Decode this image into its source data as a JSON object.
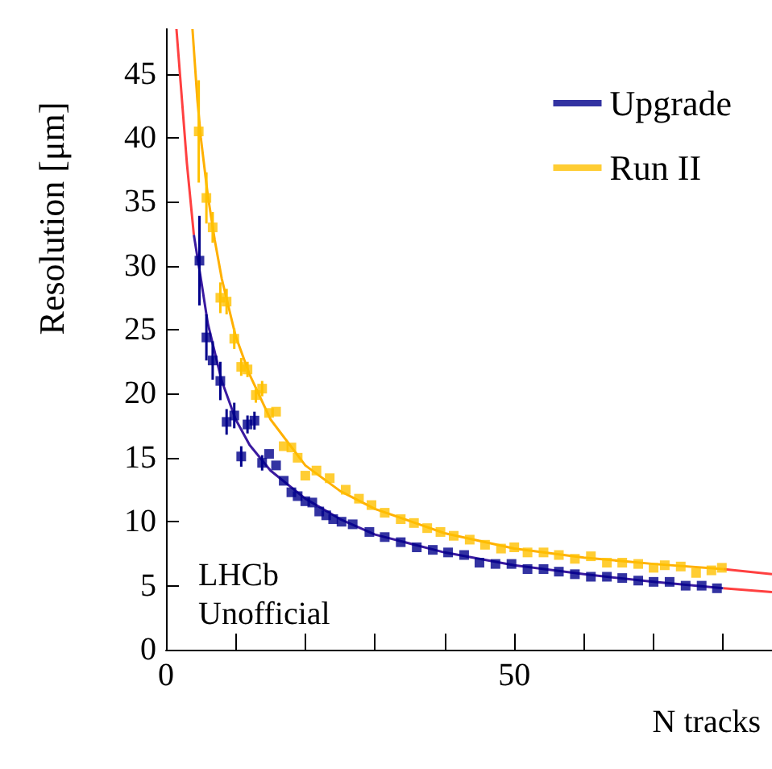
{
  "chart_data": {
    "type": "scatter",
    "xlabel": "N tracks",
    "ylabel": "Resolution [μm]",
    "annotations": [
      "LHCb\nUnofficial"
    ],
    "xlim": [
      0,
      87
    ],
    "ylim": [
      0,
      48.5
    ],
    "xticks": [
      0,
      {
        "value": 10,
        "label": null
      },
      {
        "value": 20,
        "label": null
      },
      {
        "value": 30,
        "label": null
      },
      {
        "value": 40,
        "label": null
      },
      50,
      {
        "value": 60,
        "label": null
      },
      {
        "value": 70,
        "label": null
      },
      {
        "value": 80,
        "label": null
      }
    ],
    "yticks": [
      0,
      5,
      10,
      15,
      20,
      25,
      30,
      35,
      40,
      45
    ],
    "grid": false,
    "legend": "top right",
    "marker": "square",
    "series": [
      {
        "type": "line",
        "marker": "none",
        "color": "#ff4040",
        "x": [
          1.5,
          2,
          3,
          4,
          4.01,
          79.9,
          80,
          87
        ],
        "values": [
          48.5,
          45,
          38,
          32.4,
          null,
          null,
          4.8,
          4.5
        ]
      },
      {
        "type": "line",
        "marker": "none",
        "color": "#ff4040",
        "x": [
          80,
          87
        ],
        "values": [
          6.3,
          5.9
        ]
      },
      {
        "type": "line",
        "marker": "none",
        "color": "#3a1aa0",
        "x": [
          4,
          5,
          6,
          8,
          10,
          12,
          15,
          20,
          25,
          30,
          40,
          50,
          60,
          70,
          80
        ],
        "values": [
          32.4,
          29,
          25.5,
          21,
          18,
          16,
          14,
          11.8,
          10.2,
          9,
          7.6,
          6.6,
          5.9,
          5.3,
          4.8
        ]
      },
      {
        "type": "line",
        "marker": "none",
        "color": "#ffb000",
        "x": [
          3.8,
          4.5,
          5,
          6,
          7,
          8,
          10,
          12,
          15,
          20,
          25,
          30,
          40,
          50,
          60,
          70,
          80
        ],
        "values": [
          48.5,
          43,
          40,
          35.5,
          32,
          29,
          24.5,
          21.5,
          18,
          14.4,
          12.4,
          11,
          9.1,
          7.9,
          7.2,
          6.7,
          6.3
        ]
      },
      {
        "name": "Upgrade",
        "color": "#00008b",
        "x": [
          4.8,
          5.8,
          6.7,
          7.8,
          8.7,
          9.8,
          10.8,
          11.7,
          12.7,
          13.8,
          14.8,
          15.8,
          16.9,
          18,
          18.9,
          20,
          21,
          22,
          23,
          24,
          25.2,
          26.8,
          29.2,
          31.4,
          33.7,
          36,
          38.3,
          40.5,
          42.8,
          45,
          47.3,
          49.6,
          51.9,
          54.2,
          56.4,
          58.7,
          61,
          63.3,
          65.5,
          67.8,
          70,
          72.3,
          74.6,
          76.9,
          79.1
        ],
        "values": [
          30.4,
          24.4,
          22.6,
          21,
          17.8,
          18.3,
          15.1,
          17.6,
          17.9,
          14.6,
          15.3,
          14.4,
          13.2,
          12.3,
          12,
          11.6,
          11.5,
          10.8,
          10.5,
          10.2,
          10,
          9.8,
          9.2,
          8.8,
          8.4,
          8,
          7.8,
          7.6,
          7.4,
          6.8,
          6.7,
          6.7,
          6.3,
          6.3,
          6.1,
          5.9,
          5.7,
          5.7,
          5.6,
          5.4,
          5.3,
          5.3,
          5,
          5,
          4.8
        ],
        "errors": [
          3.5,
          1.8,
          1.5,
          1.5,
          1,
          1,
          0.8,
          0.7,
          0.7,
          0.6,
          null,
          null,
          null,
          null,
          null,
          null,
          null,
          null,
          null,
          null,
          null,
          null,
          null,
          null,
          null,
          null,
          null,
          null,
          null,
          null,
          null,
          null,
          null,
          null,
          null,
          null,
          null,
          null,
          null,
          null,
          null,
          null,
          null,
          null,
          null
        ]
      },
      {
        "name": "Run II",
        "color": "#ffc000",
        "x": [
          4.7,
          5.8,
          6.7,
          7.8,
          8.7,
          9.8,
          10.8,
          11.7,
          12.9,
          13.8,
          14.8,
          15.8,
          16.9,
          18,
          18.9,
          20,
          21.6,
          23.5,
          25.8,
          27.7,
          29.5,
          31.4,
          33.7,
          35.6,
          37.5,
          39.4,
          41.3,
          43.6,
          45.8,
          48.1,
          50,
          51.9,
          54.2,
          56.4,
          58.7,
          61,
          63.3,
          65.5,
          67.8,
          70,
          71.6,
          73.9,
          76.1,
          78.3,
          79.8
        ],
        "values": [
          40.5,
          35.3,
          33,
          27.5,
          27.2,
          24.3,
          22.1,
          21.9,
          19.9,
          20.4,
          18.5,
          18.6,
          15.9,
          15.8,
          15,
          13.6,
          14,
          13.4,
          12.5,
          11.8,
          11.3,
          10.7,
          10.2,
          9.9,
          9.5,
          9.2,
          8.9,
          8.6,
          8.2,
          7.9,
          8,
          7.6,
          7.6,
          7.4,
          7.1,
          7.3,
          6.8,
          6.8,
          6.7,
          6.4,
          6.6,
          6.5,
          6,
          6.2,
          6.4
        ],
        "errors": [
          4,
          2,
          1.2,
          1.2,
          1,
          0.8,
          0.7,
          0.6,
          0.6,
          0.6,
          null,
          null,
          null,
          null,
          null,
          null,
          null,
          null,
          null,
          null,
          null,
          null,
          null,
          null,
          null,
          null,
          null,
          null,
          null,
          null,
          null,
          null,
          null,
          null,
          null,
          null,
          null,
          null,
          null,
          null,
          null,
          null,
          null,
          null,
          null
        ]
      }
    ]
  }
}
